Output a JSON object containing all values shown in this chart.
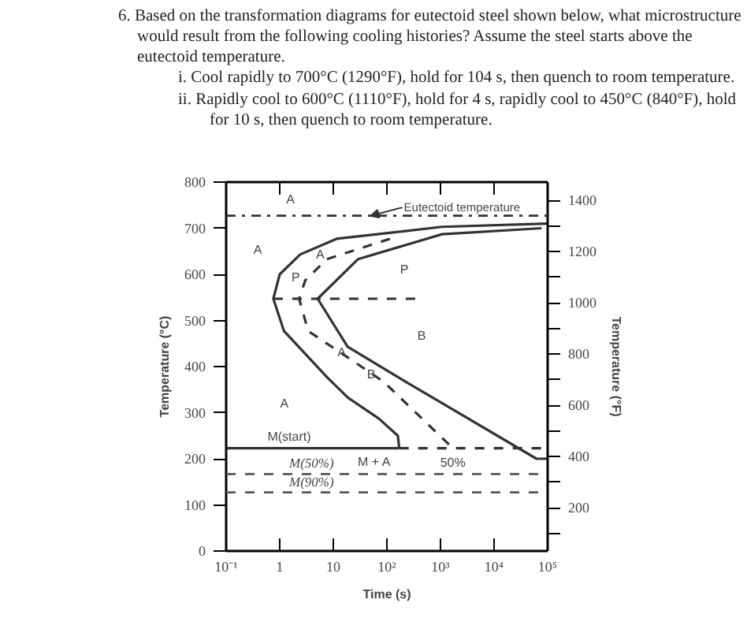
{
  "chart_data": {
    "type": "line",
    "title": "6. Based on the transformation diagrams for eutectoid steel shown below, what microstructure would result from the following cooling histories? Assume the steel starts above the eutectoid temperature.",
    "subtitle": [
      "i. Cool rapidly to 700°C (1290°F), hold for 104 s, then quench to room temperature.",
      "ii. Rapidly cool to 600°C (1110°F), hold for 4 s, rapidly cool to 450°C (840°F), hold for 10 s, then quench to room temperature."
    ],
    "xlabel": "Time (s)",
    "ylabel": "Temperature (°C)",
    "y2label": "Temperature (°F)",
    "log": "x",
    "grid": false,
    "marker": "none",
    "xlim": [
      0.1,
      100000
    ],
    "ylim": [
      0,
      800
    ],
    "y2lim": [
      32,
      1472
    ],
    "xticks": [
      {
        "value": 0.1,
        "label": "10⁻¹"
      },
      1,
      10,
      {
        "value": 100,
        "label": "10²"
      },
      {
        "value": 1000,
        "label": "10³"
      },
      {
        "value": 10000,
        "label": "10⁴"
      },
      {
        "value": 100000,
        "label": "10⁵"
      }
    ],
    "yticks": [
      0,
      100,
      200,
      300,
      400,
      500,
      600,
      700,
      800
    ],
    "y2ticks": [
      {
        "value": 100,
        "label": null
      },
      200,
      {
        "value": 300,
        "label": null
      },
      400,
      {
        "value": 500,
        "label": null
      },
      600,
      {
        "value": 700,
        "label": null
      },
      800,
      {
        "value": 900,
        "label": null
      },
      1000,
      {
        "value": 1100,
        "label": null
      },
      1200,
      {
        "value": 1300,
        "label": null
      },
      1400
    ],
    "series": [
      {
        "color": "#333333",
        "line_style": "solid",
        "x": [
          100000,
          1070,
          11.5,
          2.4,
          1,
          0.76,
          1.2,
          7.6,
          18.5,
          71,
          160,
          170
        ],
        "values": [
          710,
          703,
          677,
          643,
          600,
          547,
          477,
          377,
          333,
          287,
          250,
          223
        ]
      },
      {
        "color": "#333333",
        "line_style": "solid",
        "x": [
          77000,
          1070,
          29,
          5.1,
          18.5,
          225,
          62000,
          100000
        ],
        "values": [
          700,
          687,
          633,
          547,
          443,
          367,
          200,
          200
        ]
      },
      {
        "color": "#333333",
        "line_style": "dashed",
        "x": [
          114,
          7.6,
          3,
          2.3,
          3.4,
          18.5,
          87,
          1700
        ],
        "values": [
          677,
          633,
          587,
          547,
          477,
          420,
          367,
          223
        ]
      },
      {
        "color": "#333333",
        "line_style": "dashed",
        "x": [
          0.76,
          390
        ],
        "values": [
          547,
          547
        ]
      },
      {
        "color": "#333333",
        "line_style": "solid",
        "x": [
          0.1,
          170
        ],
        "values": [
          223,
          223
        ]
      },
      {
        "color": "#333333",
        "line_style": "dashed",
        "x": [
          170,
          100000
        ],
        "values": [
          223,
          223
        ]
      }
    ],
    "ref_lines": [
      {
        "axis": "y",
        "value": 727,
        "line_style": "dashdot",
        "color": "#333333"
      },
      {
        "axis": "y",
        "value": 167,
        "label": "M(50%)",
        "line_style": "dashed",
        "color": "#555555"
      },
      {
        "axis": "y",
        "value": 127,
        "label": "M(90%)",
        "line_style": "dashed",
        "color": "#555555"
      }
    ],
    "annotations": [
      {
        "text": "Eutectoid temperature",
        "x": 50,
        "y": 727
      },
      "A",
      "A",
      "P",
      "B",
      "A",
      {
        "text": "P",
        "x": 2.8,
        "y": 583
      },
      {
        "text": "A",
        "x": 8,
        "y": 633
      },
      {
        "text": "A",
        "x": 20,
        "y": 420
      },
      {
        "text": "B",
        "x": 82,
        "y": 370
      },
      {
        "text": "50%",
        "x": 1700,
        "y": 223
      },
      {
        "text": "M(start)",
        "x": 1.5,
        "y": 237
      },
      "M + A"
    ]
  }
}
